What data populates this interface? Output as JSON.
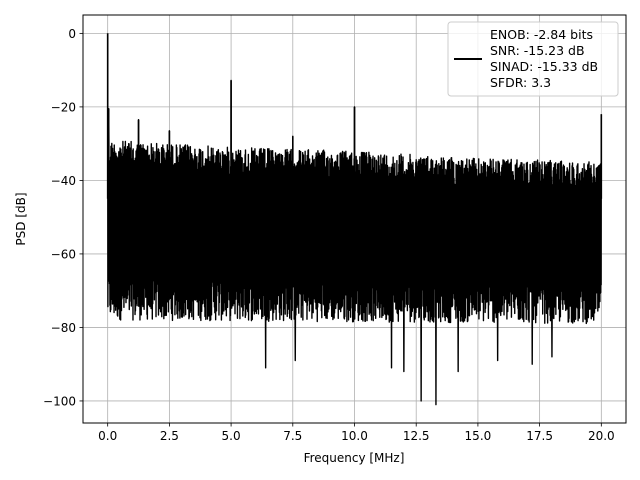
{
  "chart_data": {
    "type": "line",
    "title": "",
    "xlabel": "Frequency [MHz]",
    "ylabel": "PSD [dB]",
    "xlim": [
      -1.0,
      21.0
    ],
    "ylim": [
      -106,
      5
    ],
    "xticks": [
      0.0,
      2.5,
      5.0,
      7.5,
      10.0,
      12.5,
      15.0,
      17.5,
      20.0
    ],
    "xtick_labels": [
      "0.0",
      "2.5",
      "5.0",
      "7.5",
      "10.0",
      "12.5",
      "15.0",
      "17.5",
      "20.0"
    ],
    "yticks": [
      0,
      -20,
      -40,
      -60,
      -80,
      -100
    ],
    "ytick_labels": [
      "0",
      "−20",
      "−40",
      "−60",
      "−80",
      "−100"
    ],
    "grid": true,
    "legend": {
      "placement": "upper-right",
      "entries": [
        {
          "label": "ENOB: -2.84 bits\nSNR: -15.23 dB\nSINAD: -15.33 dB\nSFDR: 3.3",
          "color": "#000000"
        }
      ]
    },
    "series": [
      {
        "color": "#000000",
        "noise_ceiling": [
          [
            0.0,
            -29
          ],
          [
            5.0,
            -31
          ],
          [
            10.0,
            -32
          ],
          [
            15.0,
            -34
          ],
          [
            20.0,
            -35
          ]
        ],
        "noise_floor_typical": [
          [
            0.0,
            -75
          ],
          [
            20.0,
            -76
          ]
        ],
        "peaks": [
          {
            "x": 0.0,
            "y": 0.0
          },
          {
            "x": 0.04,
            "y": -20.5
          },
          {
            "x": 1.25,
            "y": -23.5
          },
          {
            "x": 2.5,
            "y": -26.5
          },
          {
            "x": 5.0,
            "y": -12.8
          },
          {
            "x": 7.5,
            "y": -28
          },
          {
            "x": 10.0,
            "y": -20
          },
          {
            "x": 20.0,
            "y": -22
          }
        ],
        "dips": [
          {
            "x": 6.4,
            "y": -91
          },
          {
            "x": 7.6,
            "y": -89
          },
          {
            "x": 11.5,
            "y": -91
          },
          {
            "x": 12.0,
            "y": -92
          },
          {
            "x": 12.7,
            "y": -100
          },
          {
            "x": 13.3,
            "y": -101
          },
          {
            "x": 14.2,
            "y": -92
          },
          {
            "x": 15.8,
            "y": -89
          },
          {
            "x": 17.2,
            "y": -90
          },
          {
            "x": 18.0,
            "y": -88
          }
        ]
      }
    ]
  }
}
